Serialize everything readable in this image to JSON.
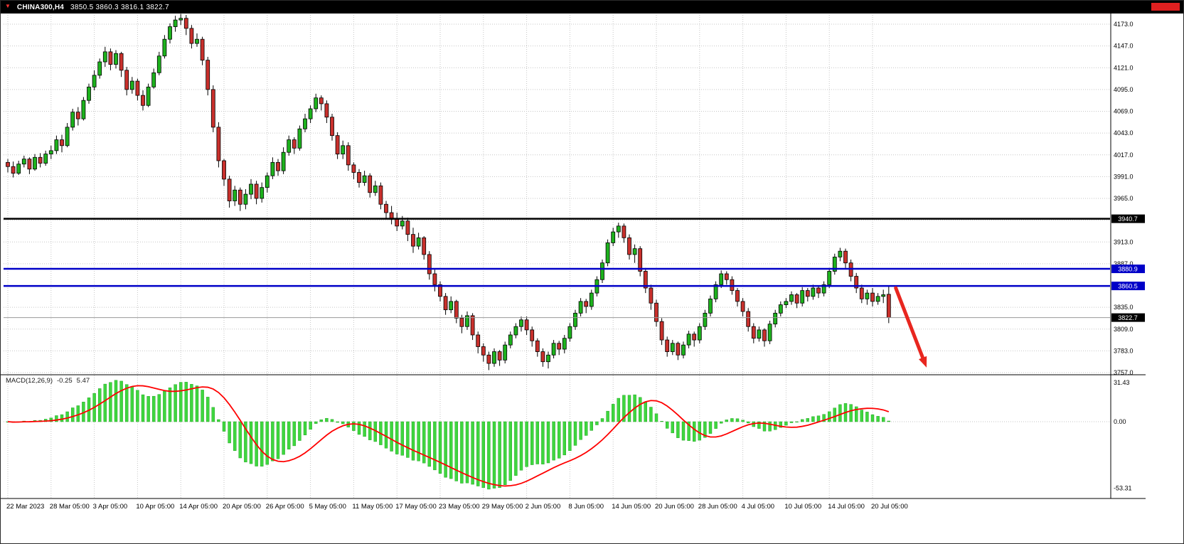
{
  "title_bar": {
    "symbol_period": "CHINA300,H4",
    "ohlc_text": "3850.5 3860.3 3816.1 3822.7",
    "marker_icon_color": "#FF3232",
    "red_box_color": "#E02020"
  },
  "chart_data": [
    {
      "type": "candlestick",
      "symbol": "CHINA300",
      "timeframe": "H4",
      "y_ticks": [
        4173,
        4147,
        4121,
        4095,
        4069,
        4043,
        4017,
        3991,
        3965,
        3939,
        3913,
        3887,
        3861,
        3835,
        3809,
        3783,
        3757
      ],
      "y_tick_labels": [
        "4173.0",
        "4147.0",
        "4121.0",
        "4095.0",
        "4069.0",
        "4043.0",
        "4017.0",
        "3991.0",
        "3965.0",
        "3939.0",
        "3913.0",
        "3887.0",
        "3861.0",
        "3835.0",
        "3809.0",
        "3783.0",
        "3757.0"
      ],
      "ylim": [
        3757,
        4186
      ],
      "grid": true,
      "x_labels": [
        "22 Mar 2023",
        "28 Mar 05:00",
        "3 Apr 05:00",
        "10 Apr 05:00",
        "14 Apr 05:00",
        "20 Apr 05:00",
        "26 Apr 05:00",
        "5 May 05:00",
        "11 May 05:00",
        "17 May 05:00",
        "23 May 05:00",
        "29 May 05:00",
        "2 Jun 05:00",
        "8 Jun 05:00",
        "14 Jun 05:00",
        "20 Jun 05:00",
        "28 Jun 05:00",
        "4 Jul 05:00",
        "10 Jul 05:00",
        "14 Jul 05:00",
        "20 Jul 05:00"
      ],
      "x_label_step": 8,
      "hlines": [
        {
          "price": 3940.7,
          "label": "3940.7",
          "color": "#000000",
          "badge_bg": "#000000",
          "width": 2.5
        },
        {
          "price": 3880.9,
          "label": "3880.9",
          "color": "#0000C8",
          "badge_bg": "#0000C8",
          "width": 2.5
        },
        {
          "price": 3860.5,
          "label": "3860.5",
          "color": "#0000C8",
          "badge_bg": "#0000C8",
          "width": 2.5
        }
      ],
      "last_price": {
        "price": 3822.7,
        "label": "3822.7",
        "line_color": "#999999",
        "badge_bg": "#000000"
      },
      "annotation_arrow": {
        "start_index": 164.3,
        "start_price": 3858,
        "end_index": 170,
        "end_price": 3763,
        "color": "#E8261F"
      },
      "colors": {
        "background": "#ffffff",
        "grid": "#c6c6c6",
        "bull": "#1DB21D",
        "bear": "#C9302C",
        "outline": "#000000"
      },
      "candles": [
        [
          4008,
          4012,
          3996,
          4003
        ],
        [
          4003,
          4009,
          3990,
          3995
        ],
        [
          3995,
          4010,
          3993,
          4006
        ],
        [
          4006,
          4016,
          4002,
          4012
        ],
        [
          4012,
          4014,
          3994,
          4000
        ],
        [
          4000,
          4018,
          3998,
          4014
        ],
        [
          4014,
          4019,
          4002,
          4007
        ],
        [
          4007,
          4022,
          4004,
          4018
        ],
        [
          4018,
          4028,
          4012,
          4022
        ],
        [
          4022,
          4040,
          4018,
          4035
        ],
        [
          4035,
          4041,
          4020,
          4028
        ],
        [
          4028,
          4055,
          4026,
          4050
        ],
        [
          4050,
          4072,
          4046,
          4068
        ],
        [
          4068,
          4074,
          4052,
          4060
        ],
        [
          4060,
          4086,
          4058,
          4082
        ],
        [
          4082,
          4102,
          4078,
          4098
        ],
        [
          4098,
          4118,
          4094,
          4112
        ],
        [
          4112,
          4132,
          4108,
          4128
        ],
        [
          4128,
          4146,
          4122,
          4140
        ],
        [
          4140,
          4144,
          4118,
          4125
        ],
        [
          4125,
          4142,
          4120,
          4138
        ],
        [
          4138,
          4140,
          4110,
          4118
        ],
        [
          4118,
          4122,
          4088,
          4095
        ],
        [
          4095,
          4110,
          4090,
          4105
        ],
        [
          4105,
          4108,
          4082,
          4088
        ],
        [
          4088,
          4094,
          4070,
          4076
        ],
        [
          4076,
          4102,
          4074,
          4098
        ],
        [
          4098,
          4120,
          4096,
          4115
        ],
        [
          4115,
          4140,
          4112,
          4135
        ],
        [
          4135,
          4160,
          4132,
          4155
        ],
        [
          4155,
          4174,
          4150,
          4170
        ],
        [
          4170,
          4183,
          4164,
          4178
        ],
        [
          4178,
          4186,
          4172,
          4180
        ],
        [
          4180,
          4184,
          4160,
          4168
        ],
        [
          4168,
          4172,
          4144,
          4150
        ],
        [
          4150,
          4162,
          4146,
          4155
        ],
        [
          4155,
          4158,
          4124,
          4130
        ],
        [
          4130,
          4134,
          4088,
          4095
        ],
        [
          4095,
          4100,
          4044,
          4050
        ],
        [
          4050,
          4056,
          4002,
          4010
        ],
        [
          4010,
          4012,
          3980,
          3988
        ],
        [
          3988,
          3992,
          3954,
          3962
        ],
        [
          3962,
          3980,
          3956,
          3975
        ],
        [
          3975,
          3978,
          3950,
          3958
        ],
        [
          3958,
          3976,
          3952,
          3970
        ],
        [
          3970,
          3988,
          3964,
          3982
        ],
        [
          3982,
          3986,
          3958,
          3965
        ],
        [
          3965,
          3984,
          3960,
          3978
        ],
        [
          3978,
          3996,
          3972,
          3992
        ],
        [
          3992,
          4014,
          3988,
          4008
        ],
        [
          4008,
          4012,
          3992,
          3998
        ],
        [
          3998,
          4026,
          3994,
          4020
        ],
        [
          4020,
          4040,
          4016,
          4035
        ],
        [
          4035,
          4038,
          4018,
          4025
        ],
        [
          4025,
          4052,
          4022,
          4048
        ],
        [
          4048,
          4066,
          4044,
          4060
        ],
        [
          4060,
          4076,
          4055,
          4072
        ],
        [
          4072,
          4090,
          4068,
          4085
        ],
        [
          4085,
          4088,
          4070,
          4078
        ],
        [
          4078,
          4082,
          4055,
          4062
        ],
        [
          4062,
          4066,
          4034,
          4040
        ],
        [
          4040,
          4044,
          4012,
          4018
        ],
        [
          4018,
          4034,
          4012,
          4028
        ],
        [
          4028,
          4032,
          3998,
          4005
        ],
        [
          4005,
          4008,
          3988,
          3996
        ],
        [
          3996,
          4000,
          3978,
          3984
        ],
        [
          3984,
          3998,
          3980,
          3992
        ],
        [
          3992,
          3995,
          3966,
          3972
        ],
        [
          3972,
          3986,
          3968,
          3980
        ],
        [
          3980,
          3984,
          3952,
          3958
        ],
        [
          3958,
          3962,
          3940,
          3948
        ],
        [
          3948,
          3956,
          3934,
          3940
        ],
        [
          3940,
          3948,
          3926,
          3932
        ],
        [
          3932,
          3944,
          3928,
          3938
        ],
        [
          3938,
          3942,
          3914,
          3922
        ],
        [
          3922,
          3930,
          3900,
          3908
        ],
        [
          3908,
          3924,
          3904,
          3918
        ],
        [
          3918,
          3920,
          3892,
          3898
        ],
        [
          3898,
          3902,
          3868,
          3875
        ],
        [
          3875,
          3880,
          3854,
          3862
        ],
        [
          3862,
          3866,
          3842,
          3848
        ],
        [
          3848,
          3852,
          3826,
          3832
        ],
        [
          3832,
          3848,
          3828,
          3842
        ],
        [
          3842,
          3844,
          3816,
          3822
        ],
        [
          3822,
          3826,
          3804,
          3812
        ],
        [
          3812,
          3830,
          3808,
          3825
        ],
        [
          3825,
          3828,
          3796,
          3802
        ],
        [
          3802,
          3806,
          3780,
          3788
        ],
        [
          3788,
          3792,
          3770,
          3778
        ],
        [
          3778,
          3782,
          3760,
          3768
        ],
        [
          3768,
          3786,
          3764,
          3782
        ],
        [
          3782,
          3784,
          3765,
          3772
        ],
        [
          3772,
          3794,
          3768,
          3790
        ],
        [
          3790,
          3806,
          3786,
          3802
        ],
        [
          3802,
          3816,
          3798,
          3812
        ],
        [
          3812,
          3824,
          3806,
          3820
        ],
        [
          3820,
          3824,
          3802,
          3808
        ],
        [
          3808,
          3812,
          3788,
          3795
        ],
        [
          3795,
          3798,
          3776,
          3782
        ],
        [
          3782,
          3786,
          3764,
          3770
        ],
        [
          3770,
          3782,
          3762,
          3778
        ],
        [
          3778,
          3796,
          3774,
          3792
        ],
        [
          3792,
          3795,
          3778,
          3785
        ],
        [
          3785,
          3802,
          3780,
          3798
        ],
        [
          3798,
          3816,
          3794,
          3812
        ],
        [
          3812,
          3832,
          3808,
          3828
        ],
        [
          3828,
          3846,
          3824,
          3842
        ],
        [
          3842,
          3845,
          3828,
          3836
        ],
        [
          3836,
          3856,
          3832,
          3852
        ],
        [
          3852,
          3872,
          3848,
          3868
        ],
        [
          3868,
          3892,
          3864,
          3888
        ],
        [
          3888,
          3916,
          3884,
          3912
        ],
        [
          3912,
          3930,
          3908,
          3925
        ],
        [
          3925,
          3936,
          3918,
          3932
        ],
        [
          3932,
          3935,
          3912,
          3918
        ],
        [
          3918,
          3922,
          3892,
          3898
        ],
        [
          3898,
          3910,
          3888,
          3905
        ],
        [
          3905,
          3908,
          3872,
          3878
        ],
        [
          3878,
          3882,
          3852,
          3858
        ],
        [
          3858,
          3862,
          3832,
          3840
        ],
        [
          3840,
          3844,
          3812,
          3818
        ],
        [
          3818,
          3822,
          3790,
          3796
        ],
        [
          3796,
          3800,
          3776,
          3782
        ],
        [
          3782,
          3796,
          3778,
          3792
        ],
        [
          3792,
          3794,
          3772,
          3778
        ],
        [
          3778,
          3794,
          3774,
          3790
        ],
        [
          3790,
          3807,
          3786,
          3803
        ],
        [
          3803,
          3806,
          3788,
          3796
        ],
        [
          3796,
          3816,
          3792,
          3812
        ],
        [
          3812,
          3832,
          3808,
          3828
        ],
        [
          3828,
          3849,
          3824,
          3845
        ],
        [
          3845,
          3866,
          3841,
          3862
        ],
        [
          3862,
          3879,
          3858,
          3875
        ],
        [
          3875,
          3878,
          3862,
          3868
        ],
        [
          3868,
          3872,
          3850,
          3855
        ],
        [
          3855,
          3858,
          3836,
          3842
        ],
        [
          3842,
          3846,
          3824,
          3830
        ],
        [
          3830,
          3834,
          3806,
          3812
        ],
        [
          3812,
          3816,
          3792,
          3798
        ],
        [
          3798,
          3812,
          3794,
          3808
        ],
        [
          3808,
          3810,
          3788,
          3795
        ],
        [
          3795,
          3819,
          3791,
          3815
        ],
        [
          3815,
          3832,
          3811,
          3828
        ],
        [
          3828,
          3842,
          3824,
          3838
        ],
        [
          3838,
          3846,
          3834,
          3842
        ],
        [
          3842,
          3854,
          3838,
          3850
        ],
        [
          3850,
          3852,
          3834,
          3840
        ],
        [
          3840,
          3859,
          3836,
          3855
        ],
        [
          3855,
          3858,
          3842,
          3848
        ],
        [
          3848,
          3862,
          3844,
          3858
        ],
        [
          3858,
          3860,
          3846,
          3852
        ],
        [
          3852,
          3866,
          3848,
          3862
        ],
        [
          3862,
          3882,
          3858,
          3878
        ],
        [
          3878,
          3899,
          3874,
          3895
        ],
        [
          3895,
          3906,
          3890,
          3902
        ],
        [
          3902,
          3905,
          3882,
          3888
        ],
        [
          3888,
          3892,
          3866,
          3872
        ],
        [
          3872,
          3876,
          3852,
          3858
        ],
        [
          3858,
          3862,
          3840,
          3845
        ],
        [
          3845,
          3856,
          3838,
          3852
        ],
        [
          3852,
          3858,
          3836,
          3842
        ],
        [
          3842,
          3852,
          3838,
          3848
        ],
        [
          3848,
          3856,
          3840,
          3850
        ],
        [
          3850.5,
          3860.3,
          3816.1,
          3822.7
        ]
      ]
    },
    {
      "type": "macd",
      "label": "MACD(12,26,9)",
      "value_main": "-0.25",
      "value_signal": "5.47",
      "params": {
        "fast": 12,
        "slow": 26,
        "signal": 9
      },
      "y_ticks": [
        31.43,
        0,
        -53.31
      ],
      "y_tick_labels": [
        "31.43",
        "0.00",
        "-53.31"
      ],
      "histogram_color": "#3FD63F",
      "histogram_outline": "#119911",
      "signal_color": "#FF0000"
    }
  ]
}
